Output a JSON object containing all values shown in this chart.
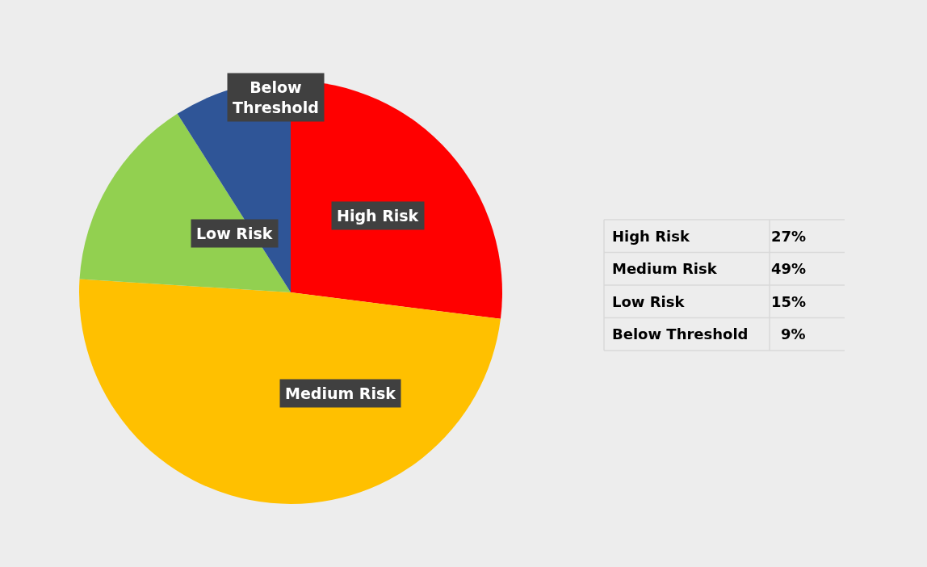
{
  "chart_data": {
    "type": "pie",
    "categories": [
      "High Risk",
      "Medium Risk",
      "Low Risk",
      "Below Threshold"
    ],
    "values": [
      27,
      49,
      15,
      9
    ],
    "colors": [
      "#ff0000",
      "#ffc000",
      "#92d050",
      "#2f5597"
    ],
    "annotations": [
      "27%",
      "49%",
      "15%",
      "9%"
    ],
    "legend": false
  }
}
